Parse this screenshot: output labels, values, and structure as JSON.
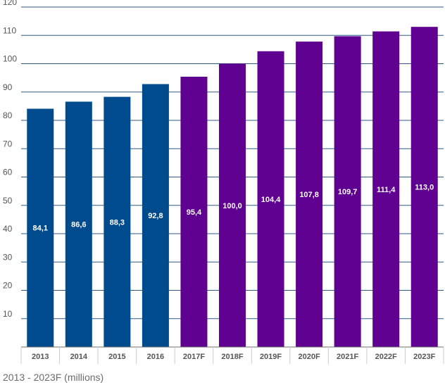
{
  "chart_data": {
    "type": "bar",
    "categories": [
      "2013",
      "2014",
      "2015",
      "2016",
      "2017F",
      "2018F",
      "2019F",
      "2020F",
      "2021F",
      "2022F",
      "2023F"
    ],
    "values": [
      84.1,
      86.6,
      88.3,
      92.8,
      95.4,
      100.0,
      104.4,
      107.8,
      109.7,
      111.4,
      113.0
    ],
    "value_labels": [
      "84,1",
      "86,6",
      "88,3",
      "92,8",
      "95,4",
      "100,0",
      "104,4",
      "107,8",
      "109,7",
      "111,4",
      "113,0"
    ],
    "series_types": [
      "actual",
      "actual",
      "actual",
      "actual",
      "forecast",
      "forecast",
      "forecast",
      "forecast",
      "forecast",
      "forecast",
      "forecast"
    ],
    "colors": {
      "actual": "#004b8d",
      "forecast": "#5f0090",
      "grid": "#2f5a86",
      "axis": "#6e6e6e",
      "tick_text": "#555555"
    },
    "yticks": [
      10,
      20,
      30,
      40,
      50,
      60,
      70,
      80,
      90,
      100,
      110,
      120
    ],
    "ylim": [
      0,
      120
    ],
    "grid": true,
    "title": "",
    "xlabel": "",
    "ylabel": ""
  },
  "caption": "2013 - 2023F (millions)"
}
